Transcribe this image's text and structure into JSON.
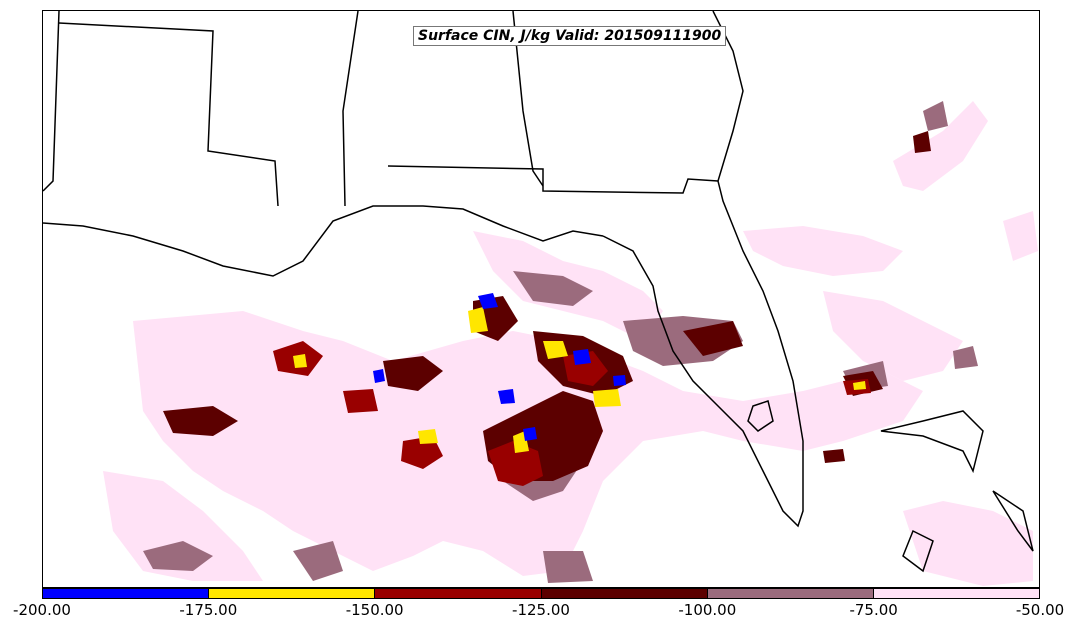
{
  "title": "Surface CIN, J/kg Valid: 201509111900",
  "colorbar": {
    "colors": [
      "#0000ff",
      "#ffe600",
      "#990000",
      "#5c0000",
      "#9b6b7d",
      "#ffe2f6"
    ],
    "ticks": [
      "-200.00",
      "-175.00",
      "-150.00",
      "-125.00",
      "-100.00",
      "-75.00",
      "-50.00"
    ],
    "range": [
      -200,
      -50
    ]
  },
  "legend_colors": {
    "blue": "#0000ff",
    "yellow": "#ffe600",
    "red": "#990000",
    "dark_red": "#5c0000",
    "mauve": "#9b6b7d",
    "pink": "#ffe2f6"
  }
}
